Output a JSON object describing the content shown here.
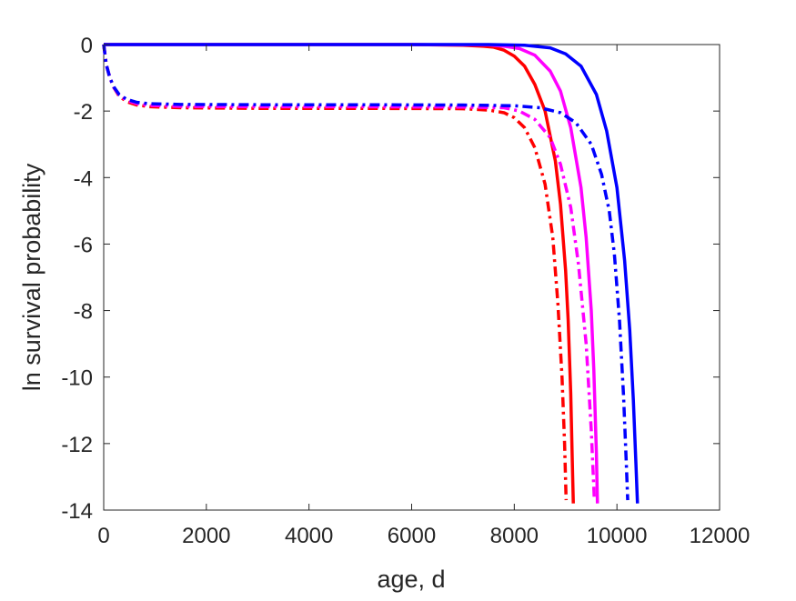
{
  "chart_data": {
    "type": "line",
    "title": "",
    "xlabel": "age, d",
    "ylabel": "ln survival probability",
    "xlim": [
      0,
      12000
    ],
    "ylim": [
      -14,
      0
    ],
    "xticks": [
      0,
      2000,
      4000,
      6000,
      8000,
      10000,
      12000
    ],
    "yticks": [
      0,
      -2,
      -4,
      -6,
      -8,
      -10,
      -12,
      -14
    ],
    "xtick_labels": [
      "0",
      "2000",
      "4000",
      "6000",
      "8000",
      "10000",
      "12000"
    ],
    "ytick_labels": [
      "0",
      "-2",
      "-4",
      "-6",
      "-8",
      "-10",
      "-12",
      "-14"
    ],
    "grid": false,
    "box": true,
    "series": [
      {
        "color": "#ff0000",
        "dash": "solid",
        "points": [
          [
            0,
            0
          ],
          [
            2000,
            0
          ],
          [
            4000,
            0
          ],
          [
            6000,
            0
          ],
          [
            7000,
            -0.02
          ],
          [
            7400,
            -0.05
          ],
          [
            7600,
            -0.08
          ],
          [
            7800,
            -0.17
          ],
          [
            8000,
            -0.35
          ],
          [
            8200,
            -0.65
          ],
          [
            8400,
            -1.2
          ],
          [
            8600,
            -2.0
          ],
          [
            8800,
            -3.5
          ],
          [
            8900,
            -4.8
          ],
          [
            9000,
            -6.8
          ],
          [
            9050,
            -8.3
          ],
          [
            9100,
            -10.5
          ],
          [
            9130,
            -12.5
          ],
          [
            9150,
            -13.8
          ]
        ]
      },
      {
        "color": "#ff00ff",
        "dash": "solid",
        "points": [
          [
            0,
            0
          ],
          [
            2000,
            0
          ],
          [
            4000,
            0
          ],
          [
            6000,
            0
          ],
          [
            7500,
            -0.01
          ],
          [
            7800,
            -0.05
          ],
          [
            8100,
            -0.12
          ],
          [
            8400,
            -0.32
          ],
          [
            8700,
            -0.8
          ],
          [
            8900,
            -1.4
          ],
          [
            9100,
            -2.5
          ],
          [
            9300,
            -4.3
          ],
          [
            9400,
            -5.8
          ],
          [
            9500,
            -8.0
          ],
          [
            9550,
            -9.8
          ],
          [
            9600,
            -12.3
          ],
          [
            9620,
            -13.8
          ]
        ]
      },
      {
        "color": "#0000ff",
        "dash": "solid",
        "points": [
          [
            0,
            0
          ],
          [
            2000,
            0
          ],
          [
            4000,
            0
          ],
          [
            6000,
            0
          ],
          [
            7500,
            0
          ],
          [
            8200,
            -0.02
          ],
          [
            8700,
            -0.1
          ],
          [
            9000,
            -0.28
          ],
          [
            9300,
            -0.65
          ],
          [
            9600,
            -1.5
          ],
          [
            9800,
            -2.6
          ],
          [
            10000,
            -4.3
          ],
          [
            10150,
            -6.5
          ],
          [
            10250,
            -8.6
          ],
          [
            10320,
            -10.7
          ],
          [
            10370,
            -12.6
          ],
          [
            10400,
            -13.8
          ]
        ]
      },
      {
        "color": "#ff0000",
        "dash": "dashdot",
        "points": [
          [
            0,
            0
          ],
          [
            50,
            -0.6
          ],
          [
            120,
            -1.0
          ],
          [
            200,
            -1.3
          ],
          [
            300,
            -1.55
          ],
          [
            450,
            -1.72
          ],
          [
            650,
            -1.82
          ],
          [
            900,
            -1.87
          ],
          [
            1500,
            -1.9
          ],
          [
            3000,
            -1.92
          ],
          [
            5000,
            -1.92
          ],
          [
            7000,
            -1.93
          ],
          [
            7500,
            -1.97
          ],
          [
            7800,
            -2.05
          ],
          [
            8000,
            -2.2
          ],
          [
            8200,
            -2.5
          ],
          [
            8400,
            -3.1
          ],
          [
            8600,
            -4.2
          ],
          [
            8750,
            -5.8
          ],
          [
            8850,
            -7.8
          ],
          [
            8930,
            -10.0
          ],
          [
            8980,
            -12.0
          ],
          [
            9010,
            -13.7
          ]
        ]
      },
      {
        "color": "#ff00ff",
        "dash": "dashdot",
        "points": [
          [
            0,
            0
          ],
          [
            50,
            -0.6
          ],
          [
            120,
            -1.0
          ],
          [
            200,
            -1.3
          ],
          [
            300,
            -1.52
          ],
          [
            450,
            -1.68
          ],
          [
            650,
            -1.78
          ],
          [
            900,
            -1.83
          ],
          [
            1500,
            -1.86
          ],
          [
            3000,
            -1.87
          ],
          [
            5000,
            -1.87
          ],
          [
            7000,
            -1.88
          ],
          [
            7800,
            -1.9
          ],
          [
            8100,
            -2.0
          ],
          [
            8400,
            -2.25
          ],
          [
            8700,
            -2.8
          ],
          [
            8900,
            -3.6
          ],
          [
            9100,
            -4.9
          ],
          [
            9250,
            -6.6
          ],
          [
            9400,
            -9.0
          ],
          [
            9500,
            -11.6
          ],
          [
            9560,
            -13.7
          ]
        ]
      },
      {
        "color": "#0000ff",
        "dash": "dashdot",
        "points": [
          [
            0,
            0
          ],
          [
            50,
            -0.6
          ],
          [
            120,
            -1.0
          ],
          [
            200,
            -1.28
          ],
          [
            300,
            -1.5
          ],
          [
            450,
            -1.65
          ],
          [
            650,
            -1.74
          ],
          [
            900,
            -1.78
          ],
          [
            1500,
            -1.8
          ],
          [
            3000,
            -1.81
          ],
          [
            5000,
            -1.81
          ],
          [
            7000,
            -1.82
          ],
          [
            8000,
            -1.84
          ],
          [
            8500,
            -1.9
          ],
          [
            8900,
            -2.05
          ],
          [
            9200,
            -2.35
          ],
          [
            9500,
            -3.0
          ],
          [
            9700,
            -3.9
          ],
          [
            9850,
            -5.0
          ],
          [
            9950,
            -6.3
          ],
          [
            10050,
            -8.3
          ],
          [
            10130,
            -10.6
          ],
          [
            10180,
            -12.5
          ],
          [
            10210,
            -13.7
          ]
        ]
      }
    ]
  }
}
